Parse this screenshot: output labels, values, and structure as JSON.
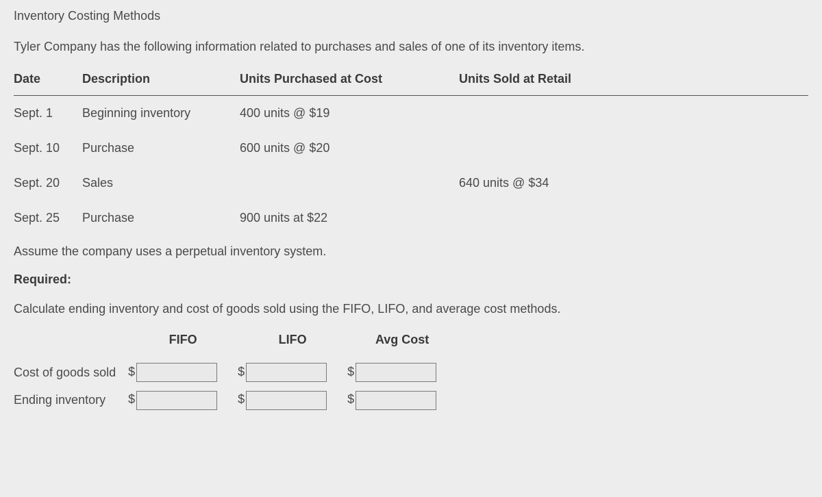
{
  "title": "Inventory Costing Methods",
  "intro": "Tyler Company has the following information related to purchases and sales of one of its inventory items.",
  "table": {
    "headers": {
      "date": "Date",
      "description": "Description",
      "purchased": "Units Purchased at Cost",
      "sold": "Units Sold at Retail"
    },
    "rows": [
      {
        "date": "Sept. 1",
        "description": "Beginning inventory",
        "purchased": "400 units @ $19",
        "sold": ""
      },
      {
        "date": "Sept. 10",
        "description": "Purchase",
        "purchased": "600 units @ $20",
        "sold": ""
      },
      {
        "date": "Sept. 20",
        "description": "Sales",
        "purchased": "",
        "sold": "640 units @ $34"
      },
      {
        "date": "Sept. 25",
        "description": "Purchase",
        "purchased": "900 units at $22",
        "sold": ""
      }
    ]
  },
  "assumption": "Assume the company uses a perpetual inventory system.",
  "required_label": "Required:",
  "required_text": "Calculate ending inventory and cost of goods sold using the FIFO, LIFO, and average cost methods.",
  "answer": {
    "col_headers": {
      "fifo": "FIFO",
      "lifo": "LIFO",
      "avg": "Avg Cost"
    },
    "row_labels": {
      "cogs": "Cost of goods sold",
      "ending": "Ending inventory"
    },
    "currency": "$",
    "values": {
      "cogs": {
        "fifo": "",
        "lifo": "",
        "avg": ""
      },
      "ending": {
        "fifo": "",
        "lifo": "",
        "avg": ""
      }
    }
  }
}
